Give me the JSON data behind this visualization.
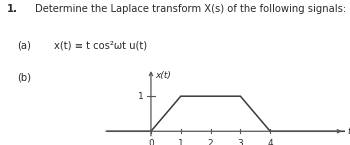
{
  "title_number": "1.",
  "title_text": "Determine the Laplace transform X(s) of the following signals:",
  "part_a_label": "(a)",
  "part_a_eq": "x(t) ≡ t cos²ωt u(t)",
  "part_b_label": "(b)",
  "signal_x": [
    -1.5,
    0,
    1,
    3,
    4,
    7
  ],
  "signal_y": [
    0,
    0,
    1,
    1,
    0,
    0
  ],
  "xlabel": "t",
  "ylabel": "x(t)",
  "xticks": [
    0,
    1,
    2,
    3,
    4
  ],
  "yticks": [
    1
  ],
  "xlim": [
    -1.6,
    6.5
  ],
  "ylim": [
    -0.35,
    1.8
  ],
  "text_color": "#2b2b2b",
  "line_color": "#3a3a3a",
  "axis_color": "#555555",
  "bg_color": "#ffffff",
  "title_fontsize": 7.2,
  "label_fontsize": 6.5,
  "tick_fontsize": 6.5,
  "eq_fontsize": 7.2
}
